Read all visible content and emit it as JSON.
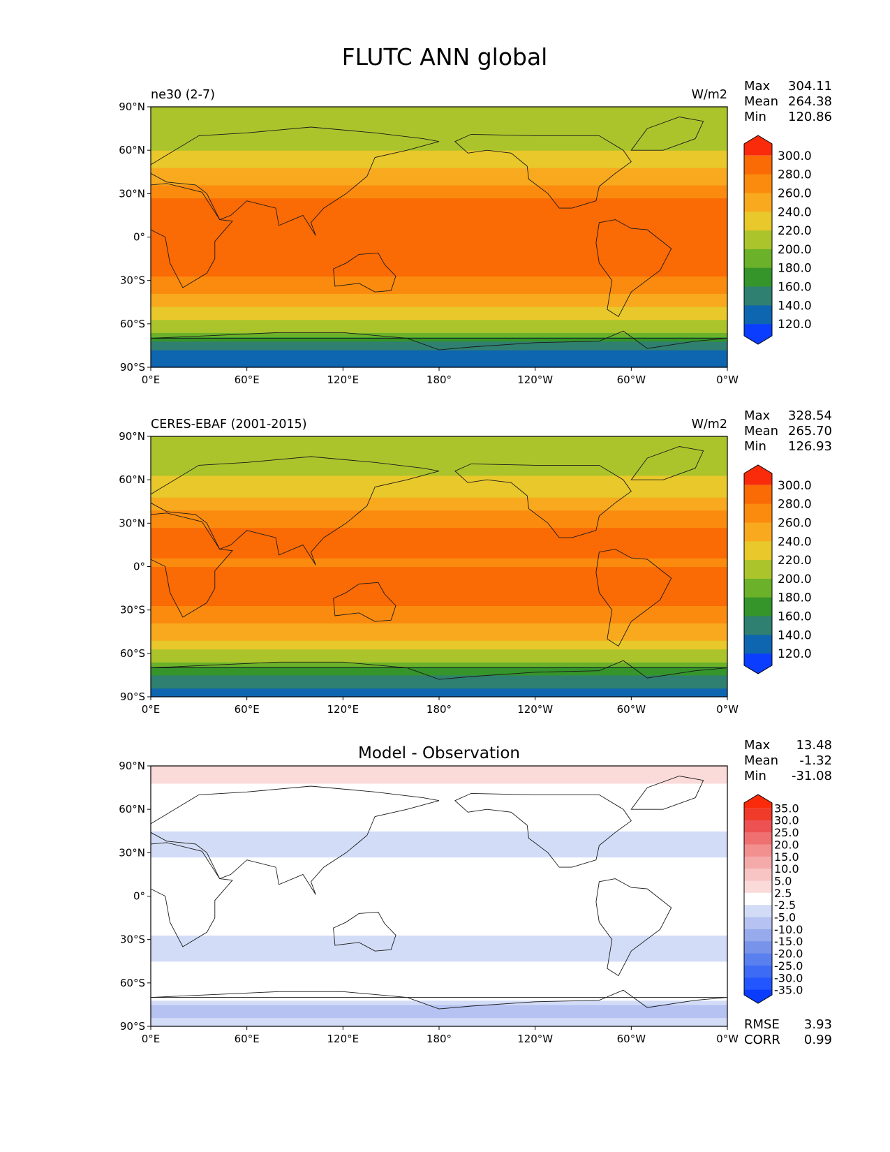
{
  "figure": {
    "title": "FLUTC ANN global"
  },
  "chart_data": [
    {
      "type": "heatmap",
      "panel": "model",
      "left_label": "ne30 (2-7)",
      "units": "W/m2",
      "stats": [
        {
          "label": "Max",
          "value": "304.11"
        },
        {
          "label": "Mean",
          "value": "264.38"
        },
        {
          "label": "Min",
          "value": "120.86"
        }
      ],
      "x_ticks": [
        "0°E",
        "60°E",
        "120°E",
        "180°",
        "120°W",
        "60°W",
        "0°W"
      ],
      "y_ticks": [
        "90°N",
        "60°N",
        "30°N",
        "0°",
        "30°S",
        "60°S",
        "90°S"
      ],
      "xlim": [
        0,
        360
      ],
      "ylim": [
        -90,
        90
      ],
      "levels": [
        110,
        120,
        140,
        160,
        180,
        200,
        220,
        240,
        260,
        280,
        300,
        310
      ],
      "colorbar_labels": [
        "300.0",
        "280.0",
        "260.0",
        "240.0",
        "220.0",
        "200.0",
        "180.0",
        "160.0",
        "140.0",
        "120.0"
      ],
      "colors": [
        "#0b3dff",
        "#0e66b0",
        "#2f8070",
        "#35952b",
        "#6bb12a",
        "#acc42c",
        "#e8c82a",
        "#f8a91e",
        "#fb8b0e",
        "#fa6a05",
        "#f92b0a"
      ],
      "zonal_profile": [
        {
          "lat": -90,
          "v": 130
        },
        {
          "lat": -80,
          "v": 135
        },
        {
          "lat": -72,
          "v": 165
        },
        {
          "lat": -65,
          "v": 200
        },
        {
          "lat": -55,
          "v": 225
        },
        {
          "lat": -45,
          "v": 250
        },
        {
          "lat": -35,
          "v": 265
        },
        {
          "lat": -25,
          "v": 282
        },
        {
          "lat": -15,
          "v": 285
        },
        {
          "lat": -5,
          "v": 282
        },
        {
          "lat": 5,
          "v": 280
        },
        {
          "lat": 15,
          "v": 285
        },
        {
          "lat": 25,
          "v": 283
        },
        {
          "lat": 35,
          "v": 262
        },
        {
          "lat": 45,
          "v": 245
        },
        {
          "lat": 55,
          "v": 228
        },
        {
          "lat": 65,
          "v": 212
        },
        {
          "lat": 75,
          "v": 202
        },
        {
          "lat": 90,
          "v": 200
        }
      ]
    },
    {
      "type": "heatmap",
      "panel": "observation",
      "left_label": "CERES-EBAF (2001-2015)",
      "units": "W/m2",
      "stats": [
        {
          "label": "Max",
          "value": "328.54"
        },
        {
          "label": "Mean",
          "value": "265.70"
        },
        {
          "label": "Min",
          "value": "126.93"
        }
      ],
      "x_ticks": [
        "0°E",
        "60°E",
        "120°E",
        "180°",
        "120°W",
        "60°W",
        "0°W"
      ],
      "y_ticks": [
        "90°N",
        "60°N",
        "30°N",
        "0°",
        "30°S",
        "60°S",
        "90°S"
      ],
      "xlim": [
        0,
        360
      ],
      "ylim": [
        -90,
        90
      ],
      "levels": [
        110,
        120,
        140,
        160,
        180,
        200,
        220,
        240,
        260,
        280,
        300,
        310
      ],
      "colorbar_labels": [
        "300.0",
        "280.0",
        "260.0",
        "240.0",
        "220.0",
        "200.0",
        "180.0",
        "160.0",
        "140.0",
        "120.0"
      ],
      "colors": [
        "#0b3dff",
        "#0e66b0",
        "#2f8070",
        "#35952b",
        "#6bb12a",
        "#acc42c",
        "#e8c82a",
        "#f8a91e",
        "#fb8b0e",
        "#fa6a05",
        "#f92b0a"
      ],
      "zonal_profile": [
        {
          "lat": -90,
          "v": 138
        },
        {
          "lat": -80,
          "v": 142
        },
        {
          "lat": -72,
          "v": 168
        },
        {
          "lat": -65,
          "v": 205
        },
        {
          "lat": -55,
          "v": 228
        },
        {
          "lat": -45,
          "v": 252
        },
        {
          "lat": -35,
          "v": 268
        },
        {
          "lat": -25,
          "v": 284
        },
        {
          "lat": -15,
          "v": 286
        },
        {
          "lat": -5,
          "v": 281
        },
        {
          "lat": 5,
          "v": 279
        },
        {
          "lat": 15,
          "v": 286
        },
        {
          "lat": 25,
          "v": 285
        },
        {
          "lat": 35,
          "v": 265
        },
        {
          "lat": 45,
          "v": 246
        },
        {
          "lat": 55,
          "v": 230
        },
        {
          "lat": 65,
          "v": 215
        },
        {
          "lat": 75,
          "v": 204
        },
        {
          "lat": 90,
          "v": 202
        }
      ]
    },
    {
      "type": "heatmap",
      "panel": "difference",
      "center_title": "Model - Observation",
      "stats": [
        {
          "label": "Max",
          "value": "13.48"
        },
        {
          "label": "Mean",
          "value": "-1.32"
        },
        {
          "label": "Min",
          "value": "-31.08"
        }
      ],
      "x_ticks": [
        "0°E",
        "60°E",
        "120°E",
        "180°",
        "120°W",
        "60°W",
        "0°W"
      ],
      "y_ticks": [
        "90°N",
        "60°N",
        "30°N",
        "0°",
        "30°S",
        "60°S",
        "90°S"
      ],
      "xlim": [
        0,
        360
      ],
      "ylim": [
        -90,
        90
      ],
      "levels": [
        -40,
        -35,
        -30,
        -25,
        -20,
        -15,
        -10,
        -5,
        -2.5,
        2.5,
        5,
        10,
        15,
        20,
        25,
        30,
        35,
        40
      ],
      "colorbar_labels": [
        "35.0",
        "30.0",
        "25.0",
        "20.0",
        "15.0",
        "10.0",
        "5.0",
        "2.5",
        "-2.5",
        "-5.0",
        "-10.0",
        "-15.0",
        "-20.0",
        "-25.0",
        "-30.0",
        "-35.0"
      ],
      "colors": [
        "#0a3cff",
        "#2456ff",
        "#3e6bf5",
        "#5a80f0",
        "#7893ea",
        "#97aaec",
        "#b6c3f2",
        "#d3dcf7",
        "#ffffff",
        "#fbdada",
        "#f8c4c4",
        "#f5aaaa",
        "#f28f8f",
        "#ef7070",
        "#ed5151",
        "#f03a2a",
        "#f92b0a"
      ],
      "zonal_profile": [
        {
          "lat": -90,
          "v": -4
        },
        {
          "lat": -78,
          "v": -6
        },
        {
          "lat": -68,
          "v": -1
        },
        {
          "lat": -60,
          "v": 3
        },
        {
          "lat": -52,
          "v": 0
        },
        {
          "lat": -45,
          "v": -3
        },
        {
          "lat": -38,
          "v": -4
        },
        {
          "lat": -30,
          "v": -3
        },
        {
          "lat": -20,
          "v": -1
        },
        {
          "lat": -10,
          "v": 0.5
        },
        {
          "lat": 0,
          "v": 1
        },
        {
          "lat": 10,
          "v": 2
        },
        {
          "lat": 20,
          "v": -1
        },
        {
          "lat": 30,
          "v": -3
        },
        {
          "lat": 40,
          "v": -4
        },
        {
          "lat": 50,
          "v": -1
        },
        {
          "lat": 60,
          "v": -2
        },
        {
          "lat": 70,
          "v": 0
        },
        {
          "lat": 80,
          "v": 3
        },
        {
          "lat": 90,
          "v": 3
        }
      ],
      "metrics": [
        {
          "label": "RMSE",
          "value": "3.93"
        },
        {
          "label": "CORR",
          "value": "0.99"
        }
      ]
    }
  ]
}
